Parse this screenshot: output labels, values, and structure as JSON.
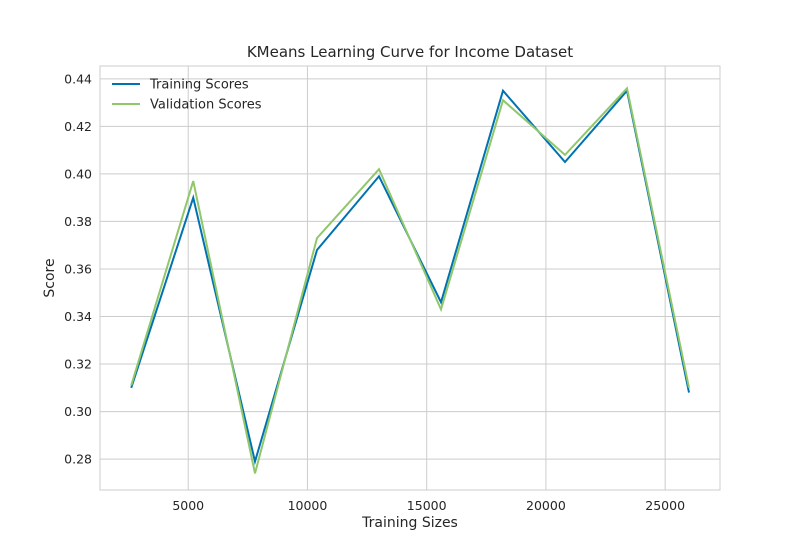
{
  "chart_data": {
    "type": "line",
    "title": "KMeans Learning Curve for Income Dataset",
    "xlabel": "Training Sizes",
    "ylabel": "Score",
    "xlim": [
      1300,
      27300
    ],
    "ylim": [
      0.267,
      0.4454
    ],
    "grid": true,
    "legend_position": "top-left",
    "x": [
      2610,
      5210,
      7800,
      10400,
      13000,
      15600,
      18200,
      20800,
      23400,
      26000
    ],
    "xticks": [
      5000,
      10000,
      15000,
      20000,
      25000
    ],
    "xtick_labels": [
      "5000",
      "10000",
      "15000",
      "20000",
      "25000"
    ],
    "yticks": [
      0.28,
      0.3,
      0.32,
      0.34,
      0.36,
      0.38,
      0.4,
      0.42,
      0.44
    ],
    "ytick_labels": [
      "0.28",
      "0.30",
      "0.32",
      "0.34",
      "0.36",
      "0.38",
      "0.40",
      "0.42",
      "0.44"
    ],
    "series": [
      {
        "name": "Training Scores",
        "color": "#0072b2",
        "values": [
          0.31,
          0.39,
          0.279,
          0.368,
          0.399,
          0.346,
          0.435,
          0.405,
          0.435,
          0.308
        ]
      },
      {
        "name": "Validation Scores",
        "color": "#8fc76a",
        "values": [
          0.311,
          0.397,
          0.274,
          0.373,
          0.402,
          0.343,
          0.431,
          0.408,
          0.436,
          0.31
        ]
      }
    ]
  }
}
